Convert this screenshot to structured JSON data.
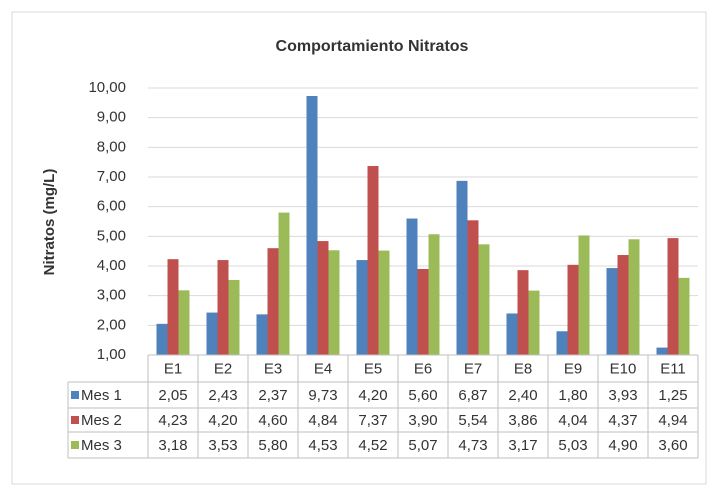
{
  "chart_data": {
    "type": "bar",
    "title": "Comportamiento Nitratos",
    "y_label": "Nitratos (mg/L)",
    "categories": [
      "E1",
      "E2",
      "E3",
      "E4",
      "E5",
      "E6",
      "E7",
      "E8",
      "E9",
      "E10",
      "E11"
    ],
    "series": [
      {
        "name": "Mes 1",
        "color": "#4f81bd",
        "values": [
          2.05,
          2.43,
          2.37,
          9.73,
          4.2,
          5.6,
          6.87,
          2.4,
          1.8,
          3.93,
          1.25
        ],
        "value_labels": [
          "2,05",
          "2,43",
          "2,37",
          "9,73",
          "4,20",
          "5,60",
          "6,87",
          "2,40",
          "1,80",
          "3,93",
          "1,25"
        ]
      },
      {
        "name": "Mes 2",
        "color": "#c0504d",
        "values": [
          4.23,
          4.2,
          4.6,
          4.84,
          7.37,
          3.9,
          5.54,
          3.86,
          4.04,
          4.37,
          4.94
        ],
        "value_labels": [
          "4,23",
          "4,20",
          "4,60",
          "4,84",
          "7,37",
          "3,90",
          "5,54",
          "3,86",
          "4,04",
          "4,37",
          "4,94"
        ]
      },
      {
        "name": "Mes 3",
        "color": "#9bbb59",
        "values": [
          3.18,
          3.53,
          5.8,
          4.53,
          4.52,
          5.07,
          4.73,
          3.17,
          5.03,
          4.9,
          3.6
        ],
        "value_labels": [
          "3,18",
          "3,53",
          "5,80",
          "4,53",
          "4,52",
          "5,07",
          "4,73",
          "3,17",
          "5,03",
          "4,90",
          "3,60"
        ]
      }
    ],
    "ylim": [
      1,
      10
    ],
    "yticks": [
      {
        "value": 1,
        "label": "1,00"
      },
      {
        "value": 2,
        "label": "2,00"
      },
      {
        "value": 3,
        "label": "3,00"
      },
      {
        "value": 4,
        "label": "4,00"
      },
      {
        "value": 5,
        "label": "5,00"
      },
      {
        "value": 6,
        "label": "6,00"
      },
      {
        "value": 7,
        "label": "7,00"
      },
      {
        "value": 8,
        "label": "8,00"
      },
      {
        "value": 9,
        "label": "9,00"
      },
      {
        "value": 10,
        "label": "10,00"
      }
    ],
    "grid": true
  }
}
